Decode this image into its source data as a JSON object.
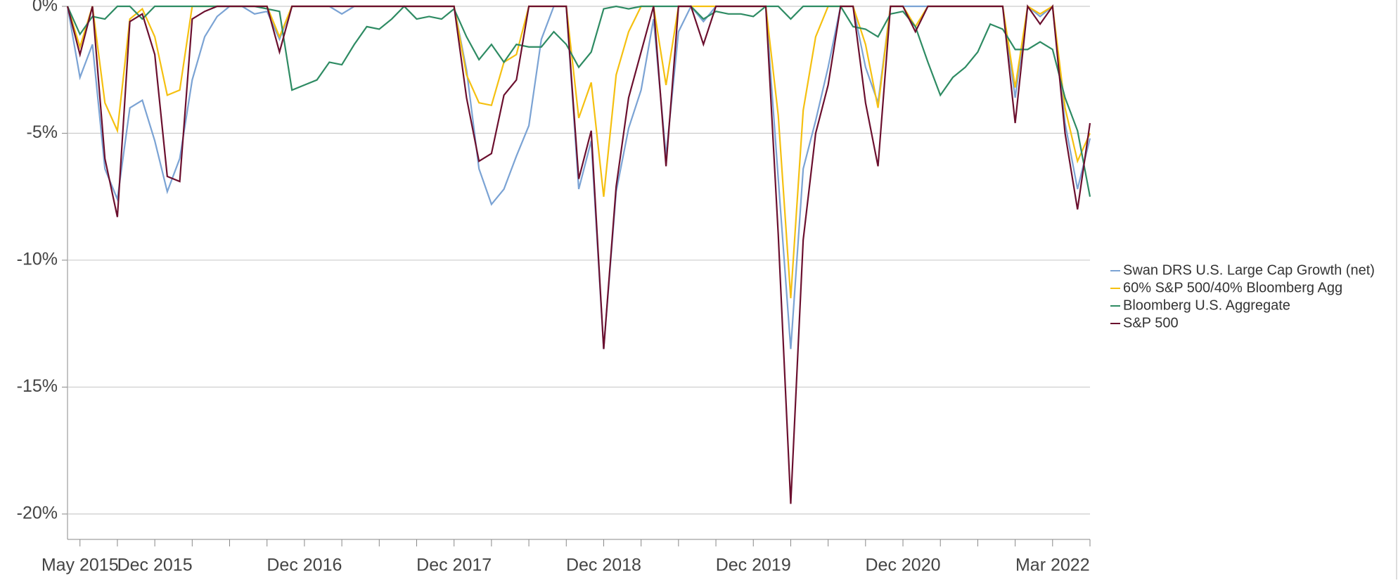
{
  "chart_data": {
    "type": "line",
    "categories": [
      null,
      "May 2015",
      null,
      null,
      null,
      null,
      null,
      "Dec 2015",
      null,
      null,
      null,
      null,
      null,
      null,
      null,
      null,
      null,
      null,
      null,
      "Dec 2016",
      null,
      null,
      null,
      null,
      null,
      null,
      null,
      null,
      null,
      null,
      null,
      "Dec 2017",
      null,
      null,
      null,
      null,
      null,
      null,
      null,
      null,
      null,
      null,
      null,
      "Dec 2018",
      null,
      null,
      null,
      null,
      null,
      null,
      null,
      null,
      null,
      null,
      null,
      "Dec 2019",
      null,
      null,
      null,
      null,
      null,
      null,
      null,
      null,
      null,
      null,
      null,
      "Dec 2020",
      null,
      null,
      null,
      null,
      null,
      null,
      null,
      null,
      null,
      null,
      null,
      "Mar 2022",
      null,
      null,
      null
    ],
    "series": [
      {
        "name": "Swan DRS U.S. Large Cap Growth (net)",
        "color": "#7ba3d4",
        "values": [
          0,
          -2.8,
          -1.5,
          -6.4,
          -7.6,
          -4.0,
          -3.7,
          -5.3,
          -7.3,
          -6.0,
          -2.9,
          -1.2,
          -0.4,
          0,
          0,
          -0.3,
          -0.2,
          -1.3,
          0,
          0,
          0,
          0,
          -0.3,
          0,
          0,
          0,
          0,
          0,
          0,
          0,
          0,
          0,
          -2.5,
          -6.4,
          -7.8,
          -7.2,
          -5.9,
          -4.7,
          -1.3,
          0,
          0,
          -7.2,
          -5.3,
          -13.5,
          -7.3,
          -4.8,
          -3.3,
          -0.5,
          -5.9,
          -1.0,
          0,
          -0.6,
          0,
          0,
          0,
          0,
          0,
          -6.8,
          -13.5,
          -6.4,
          -4.5,
          -2.4,
          0,
          0,
          -2.4,
          -3.8,
          0,
          0,
          0,
          0,
          0,
          0,
          0,
          0,
          0,
          0,
          -3.6,
          0,
          -0.4,
          0,
          -4.6,
          -7.2,
          -5.2
        ]
      },
      {
        "name": "60% S&P 500/40% Bloomberg Agg",
        "color": "#f5c010",
        "values": [
          0,
          -1.6,
          0,
          -3.8,
          -4.9,
          -0.5,
          -0.1,
          -1.2,
          -3.5,
          -3.3,
          0,
          0,
          0,
          0,
          0,
          0,
          0,
          -1.2,
          0,
          0,
          0,
          0,
          0,
          0,
          0,
          0,
          0,
          0,
          0,
          0,
          0,
          0,
          -2.7,
          -3.8,
          -3.9,
          -2.2,
          -1.9,
          0,
          0,
          0,
          0,
          -4.4,
          -3.0,
          -7.5,
          -2.7,
          -1.0,
          0,
          0,
          -3.1,
          0,
          0,
          0,
          0,
          0,
          0,
          0,
          0,
          -4.3,
          -11.5,
          -4.1,
          -1.2,
          0,
          0,
          0,
          -1.5,
          -4.0,
          0,
          0,
          -0.8,
          0,
          0,
          0,
          0,
          0,
          0,
          0,
          -3.2,
          0,
          -0.3,
          0,
          -4.0,
          -6.1,
          -5.0
        ]
      },
      {
        "name": "Bloomberg U.S. Aggregate",
        "color": "#2e8b63",
        "values": [
          0,
          -1.1,
          -0.4,
          -0.5,
          0,
          0,
          -0.5,
          0,
          0,
          0,
          0,
          0,
          0,
          0,
          0,
          0,
          -0.1,
          -0.2,
          -3.3,
          -3.1,
          -2.9,
          -2.2,
          -2.3,
          -1.5,
          -0.8,
          -0.9,
          -0.5,
          0,
          -0.5,
          -0.4,
          -0.5,
          -0.1,
          -1.2,
          -2.1,
          -1.5,
          -2.2,
          -1.5,
          -1.6,
          -1.6,
          -1.0,
          -1.5,
          -2.4,
          -1.8,
          -0.1,
          0,
          -0.1,
          0,
          0,
          0,
          0,
          0,
          -0.5,
          -0.2,
          -0.3,
          -0.3,
          -0.4,
          0,
          0,
          -0.5,
          0,
          0,
          0,
          0,
          -0.8,
          -0.9,
          -1.2,
          -0.3,
          -0.2,
          -0.8,
          -2.2,
          -3.5,
          -2.8,
          -2.4,
          -1.8,
          -0.7,
          -0.9,
          -1.7,
          -1.7,
          -1.4,
          -1.7,
          -3.6,
          -4.9,
          -7.5
        ]
      },
      {
        "name": "S&P 500",
        "color": "#6b0f2e",
        "values": [
          0,
          -1.9,
          0,
          -6.0,
          -8.3,
          -0.6,
          -0.3,
          -1.9,
          -6.7,
          -6.9,
          -0.5,
          -0.2,
          0,
          0,
          0,
          0,
          0,
          -1.8,
          0,
          0,
          0,
          0,
          0,
          0,
          0,
          0,
          0,
          0,
          0,
          0,
          0,
          0,
          -3.6,
          -6.1,
          -5.8,
          -3.5,
          -2.9,
          0,
          0,
          0,
          0,
          -6.8,
          -4.9,
          -13.5,
          -7.1,
          -3.6,
          -1.8,
          0,
          -6.3,
          0,
          0,
          -1.5,
          0,
          0,
          0,
          0,
          0,
          -9.0,
          -19.6,
          -9.2,
          -5.0,
          -3.1,
          0,
          0,
          -3.8,
          -6.3,
          0,
          0,
          -1.0,
          0,
          0,
          0,
          0,
          0,
          0,
          0,
          -4.6,
          0,
          -0.7,
          0,
          -5.0,
          -8.0,
          -4.6
        ]
      }
    ],
    "ylim": [
      -21,
      0
    ],
    "yticks": [
      {
        "value": 0,
        "label": "0%"
      },
      {
        "value": -5,
        "label": "-5%"
      },
      {
        "value": -10,
        "label": "-10%"
      },
      {
        "value": -15,
        "label": "-15%"
      },
      {
        "value": -20,
        "label": "-20%"
      }
    ],
    "grid": true,
    "legend": "right"
  }
}
